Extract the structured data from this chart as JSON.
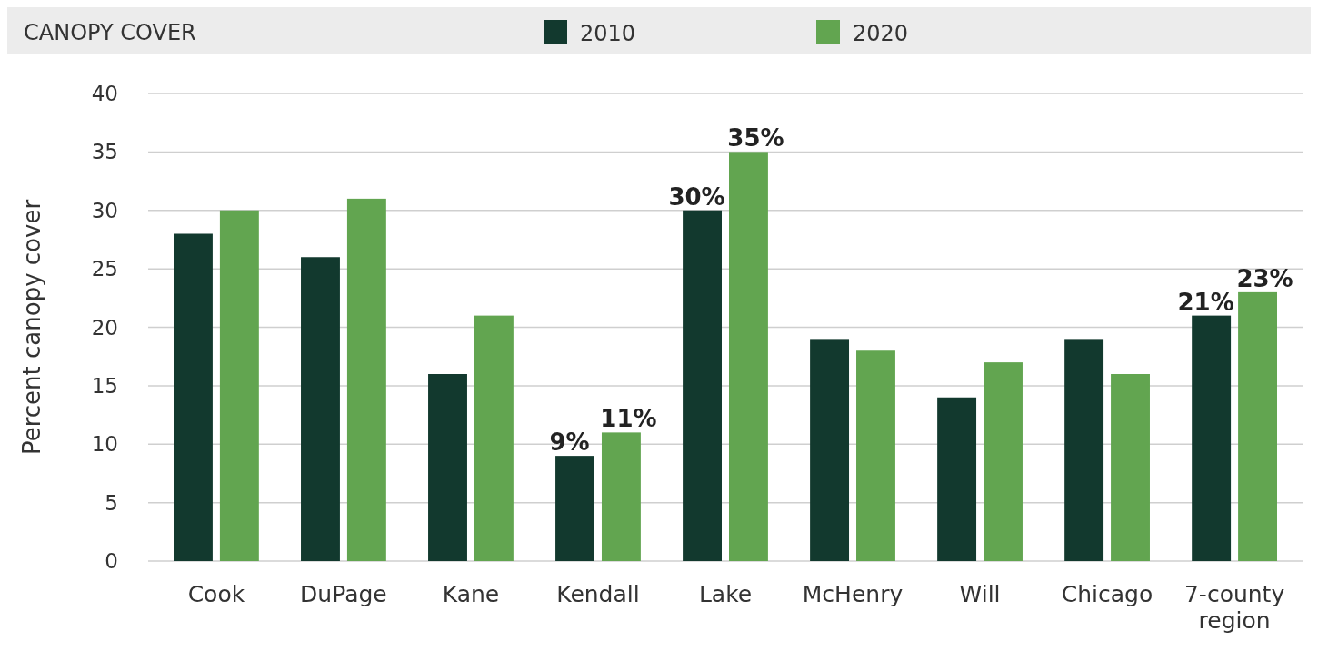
{
  "chart_data": {
    "type": "bar",
    "title": "CANOPY COVER",
    "ylabel": "Percent canopy cover",
    "categories": [
      "Cook",
      "DuPage",
      "Kane",
      "Kendall",
      "Lake",
      "McHenry",
      "Will",
      "Chicago",
      "7-county region"
    ],
    "series": [
      {
        "name": "2010",
        "color": "#12392e",
        "values": [
          28,
          26,
          16,
          9,
          30,
          19,
          14,
          19,
          21
        ],
        "value_labels": [
          null,
          null,
          null,
          "9%",
          "30%",
          null,
          null,
          null,
          "21%"
        ]
      },
      {
        "name": "2020",
        "color": "#62a550",
        "values": [
          30,
          31,
          21,
          11,
          35,
          18,
          17,
          16,
          23
        ],
        "value_labels": [
          null,
          null,
          null,
          "11%",
          "35%",
          null,
          null,
          null,
          "23%"
        ]
      }
    ],
    "ylim": [
      0,
      40
    ],
    "yticks": [
      0,
      5,
      10,
      15,
      20,
      25,
      30,
      35,
      40
    ],
    "grid": "y",
    "legend": "top"
  }
}
